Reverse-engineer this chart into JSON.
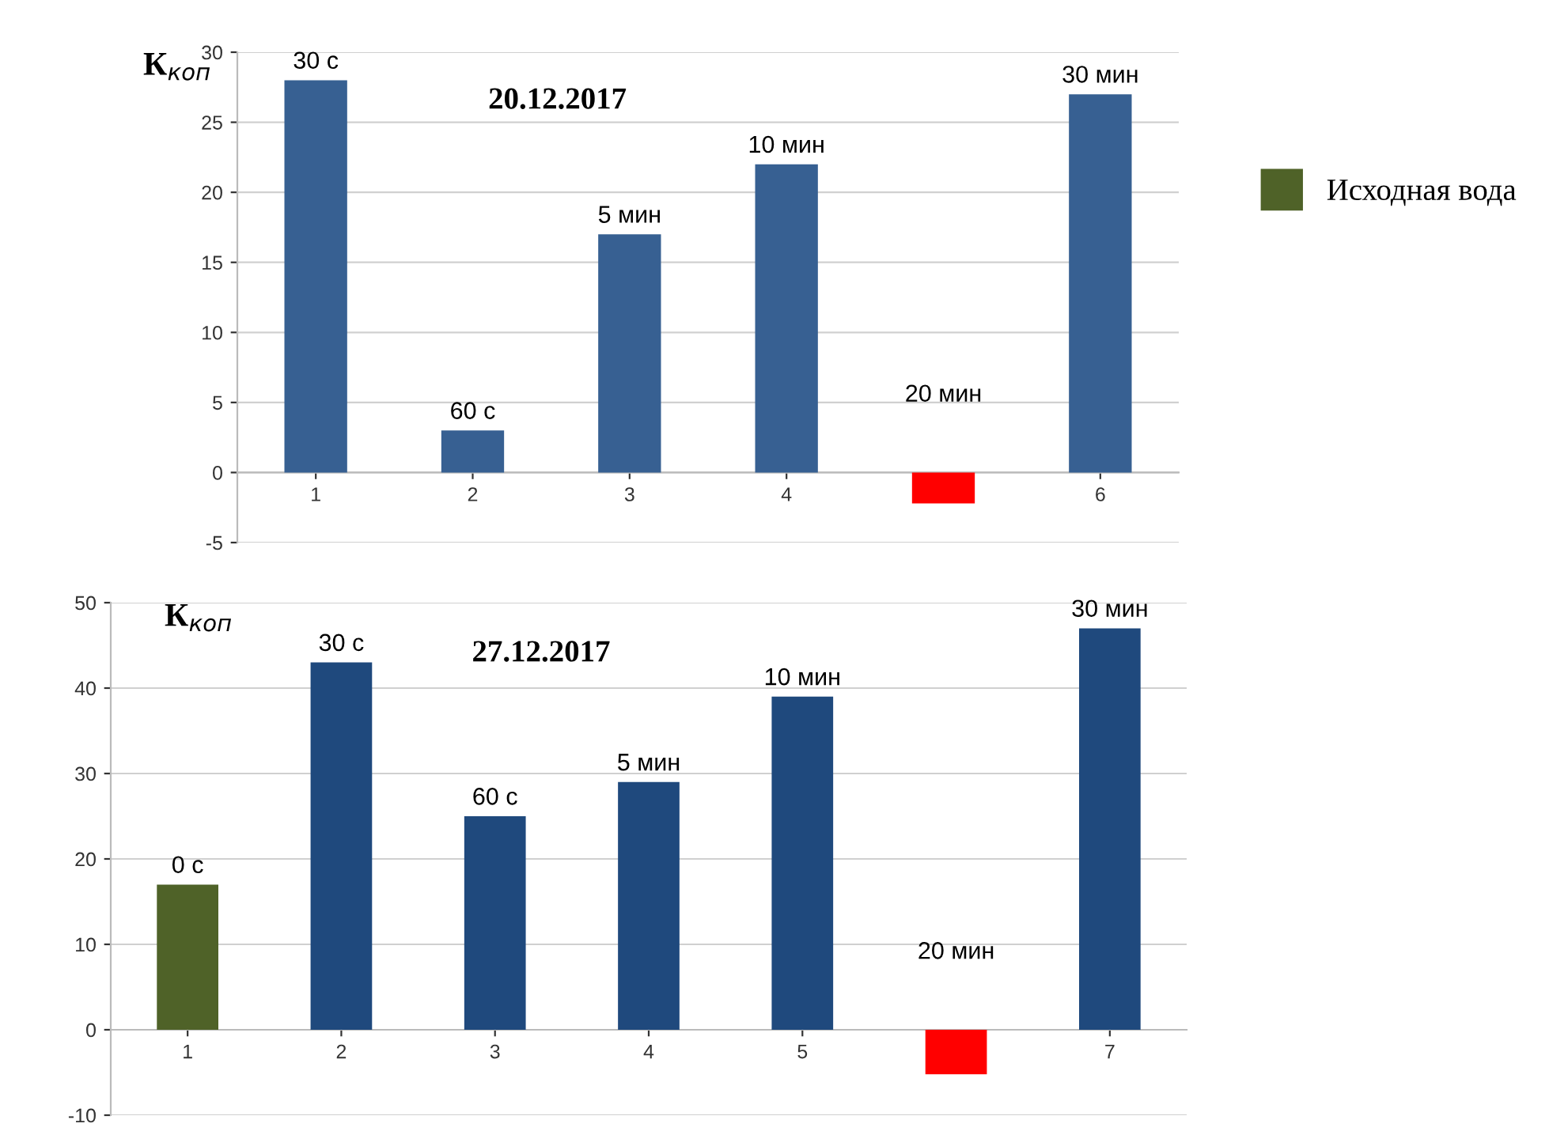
{
  "chart_data": [
    {
      "type": "bar",
      "title": "20.12.2017",
      "ylabel": "К$_{коп}$",
      "categories": [
        "1",
        "2",
        "3",
        "4",
        null,
        "6"
      ],
      "series": [
        {
          "colors": [
            "#376092",
            "#376092",
            "#376092",
            "#376092",
            "#ff0000",
            "#376092"
          ],
          "values": [
            28,
            3,
            17,
            22,
            -2.2,
            27
          ]
        }
      ],
      "ylim": [
        -5,
        30
      ],
      "yticks": [
        -5,
        0,
        5,
        10,
        15,
        20,
        25,
        30
      ],
      "grid": "y",
      "legend": false,
      "annotations": [
        {
          "text": "30 с",
          "x": "1",
          "y": 28
        },
        {
          "text": "60 с",
          "x": "2",
          "y": 3
        },
        {
          "text": "5 мин",
          "x": "3",
          "y": 17
        },
        {
          "text": "10 мин",
          "x": "4",
          "y": 22
        },
        "20 мин",
        {
          "text": "30 мин",
          "x": "6",
          "y": 27
        }
      ]
    },
    {
      "type": "bar",
      "title": "27.12.2017",
      "ylabel": "К$_{коп}$",
      "categories": [
        "1",
        "2",
        "3",
        "4",
        "5",
        null,
        "7"
      ],
      "series": [
        {
          "name": "Исходная вода",
          "color": "#4f6228",
          "values": [
            17,
            null,
            null,
            null,
            null,
            null,
            null
          ]
        },
        {
          "colors": [
            "#1f497d",
            "#1f497d",
            "#1f497d",
            "#1f497d",
            "#1f497d",
            "#ff0000",
            "#1f497d"
          ],
          "values": [
            null,
            43,
            25,
            29,
            39,
            -5.2,
            47
          ]
        }
      ],
      "ylim": [
        -10,
        50
      ],
      "yticks": [
        -10,
        0,
        10,
        20,
        30,
        40,
        50
      ],
      "grid": "y",
      "legend": "right",
      "annotations": [
        {
          "text": "0 с",
          "x": "1",
          "y": 17
        },
        {
          "text": "30 с",
          "x": "2",
          "y": 43
        },
        {
          "text": "60 с",
          "x": "3",
          "y": 25
        },
        {
          "text": "5 мин",
          "x": "4",
          "y": 29
        },
        {
          "text": "10 мин",
          "x": "5",
          "y": 39
        },
        "20 мин",
        {
          "text": "30 мин",
          "x": "7",
          "y": 47
        }
      ]
    }
  ]
}
